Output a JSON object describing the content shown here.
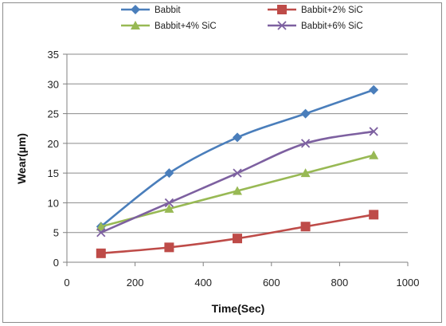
{
  "chart_data": {
    "type": "line",
    "title": "",
    "xlabel": "Time(Sec)",
    "ylabel": "Wear(µm)",
    "xlim": [
      0,
      1000
    ],
    "ylim": [
      0,
      35
    ],
    "xticks": [
      0,
      200,
      400,
      600,
      800,
      1000
    ],
    "yticks": [
      0,
      5,
      10,
      15,
      20,
      25,
      30,
      35
    ],
    "grid": "horizontal",
    "legend_position": "top",
    "x": [
      100,
      300,
      500,
      700,
      900
    ],
    "series": [
      {
        "name": "Babbit",
        "values": [
          6,
          15,
          21,
          25,
          29
        ],
        "color": "#4a7ebb",
        "marker": "diamond"
      },
      {
        "name": "Babbit+2% SiC",
        "values": [
          1.5,
          2.5,
          4,
          6,
          8
        ],
        "color": "#be4b48",
        "marker": "square"
      },
      {
        "name": "Babbit+4% SiC",
        "values": [
          6,
          9,
          12,
          15,
          18
        ],
        "color": "#98b954",
        "marker": "triangle"
      },
      {
        "name": "Babbit+6% SiC",
        "values": [
          5,
          10,
          15,
          20,
          22
        ],
        "color": "#7d60a0",
        "marker": "x"
      }
    ]
  }
}
